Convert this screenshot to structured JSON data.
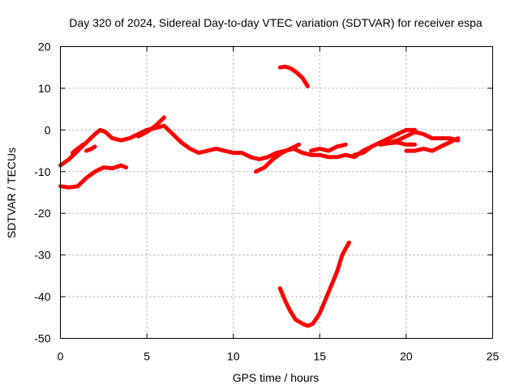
{
  "chart_data": {
    "type": "line",
    "title": "Day 320 of 2024, Sidereal Day-to-day VTEC variation (SDTVAR) for receiver espa",
    "xlabel": "GPS time / hours",
    "ylabel": "SDTVAR / TECUs",
    "xlim": [
      0,
      25
    ],
    "ylim": [
      -50,
      20
    ],
    "x_ticks": [
      0,
      5,
      10,
      15,
      20,
      25
    ],
    "y_ticks": [
      -50,
      -40,
      -30,
      -20,
      -10,
      0,
      10,
      20
    ],
    "x_tick_labels": [
      "0",
      "5",
      "10",
      "15",
      "20",
      "25"
    ],
    "y_tick_labels": [
      "-50",
      "-40",
      "-30",
      "-20",
      "-10",
      "0",
      "10",
      "20"
    ],
    "grid": true,
    "color": "#ff0000",
    "series": [
      {
        "name": "track-1",
        "x": [
          0.0,
          0.5,
          1.0,
          1.5,
          2.0,
          2.3,
          2.6,
          3.0,
          3.5,
          4.0,
          4.5,
          5.0,
          5.5,
          6.0,
          6.5,
          7.0,
          7.5,
          8.0,
          8.5,
          9.0,
          9.5,
          10.0,
          10.5,
          11.0,
          11.5,
          12.0,
          12.5,
          13.0,
          13.5,
          14.0,
          14.5,
          15.0,
          15.5,
          16.0,
          16.5,
          17.0,
          17.5,
          18.0,
          18.5,
          19.0,
          19.5,
          20.0,
          20.5,
          21.0,
          21.5,
          22.0,
          22.5,
          23.0
        ],
        "y": [
          -8.5,
          -7,
          -5,
          -3,
          -1,
          0,
          -0.5,
          -2,
          -2.5,
          -2,
          -1,
          0,
          0.5,
          1,
          -1,
          -3,
          -4.5,
          -5.5,
          -5,
          -4.5,
          -5,
          -5.5,
          -5.5,
          -6.5,
          -7,
          -6.5,
          -5.5,
          -5,
          -4.5,
          -5.5,
          -6,
          -6,
          -6.5,
          -6.5,
          -6,
          -6.5,
          -5,
          -4,
          -3,
          -3,
          -2.5,
          -1.5,
          -0.5,
          -1,
          -2,
          -2,
          -2,
          -2.5
        ]
      },
      {
        "name": "track-2",
        "x": [
          0.0,
          0.5,
          1.0,
          1.5,
          2.0,
          2.5,
          3.0,
          3.5,
          3.8
        ],
        "y": [
          -13.5,
          -13.8,
          -13.5,
          -11.5,
          -10,
          -9,
          -9.2,
          -8.5,
          -9
        ]
      },
      {
        "name": "track-3",
        "x": [
          0.7,
          1.0,
          1.3
        ],
        "y": [
          -5.5,
          -4.5,
          -3.5
        ]
      },
      {
        "name": "track-4",
        "x": [
          1.5,
          1.8,
          2.0
        ],
        "y": [
          -5,
          -4.5,
          -4
        ]
      },
      {
        "name": "track-5",
        "x": [
          4.5,
          5.0,
          5.5,
          6.0
        ],
        "y": [
          -1.5,
          -0.5,
          1,
          3
        ]
      },
      {
        "name": "track-6",
        "x": [
          11.3,
          11.8,
          12.3,
          12.8,
          13.3,
          13.8
        ],
        "y": [
          -10,
          -9,
          -7,
          -5.5,
          -4.5,
          -3.5
        ]
      },
      {
        "name": "track-7",
        "x": [
          14.5,
          15.0,
          15.5,
          16.0,
          16.5
        ],
        "y": [
          -5,
          -4.5,
          -5,
          -4,
          -3.5
        ]
      },
      {
        "name": "track-8",
        "x": [
          17.0,
          17.5,
          18.0,
          18.5,
          19.0,
          19.5,
          20.0,
          20.5
        ],
        "y": [
          -6,
          -5.5,
          -4,
          -3,
          -2,
          -1,
          0,
          0
        ]
      },
      {
        "name": "track-9",
        "x": [
          18.5,
          19.0,
          19.5,
          20.0,
          20.5
        ],
        "y": [
          -3.5,
          -3.2,
          -3,
          -3.5,
          -3.5
        ]
      },
      {
        "name": "track-10",
        "x": [
          20.0,
          20.5,
          21.0,
          21.5,
          22.0,
          22.5,
          23.0
        ],
        "y": [
          -5,
          -5,
          -4.5,
          -5,
          -4,
          -3,
          -2
        ]
      },
      {
        "name": "track-11",
        "x": [
          12.7,
          13.0,
          13.3,
          13.6,
          14.0,
          14.3
        ],
        "y": [
          15,
          15.2,
          14.8,
          14,
          12.5,
          10.5
        ]
      },
      {
        "name": "track-12",
        "x": [
          12.7,
          13.0,
          13.3,
          13.6,
          14.0,
          14.3,
          14.6,
          15.0,
          15.3,
          15.6,
          16.0,
          16.3,
          16.7
        ],
        "y": [
          -38,
          -41,
          -43.5,
          -45.5,
          -46.5,
          -47,
          -46.5,
          -44,
          -41,
          -38,
          -34,
          -30,
          -27
        ]
      }
    ]
  }
}
